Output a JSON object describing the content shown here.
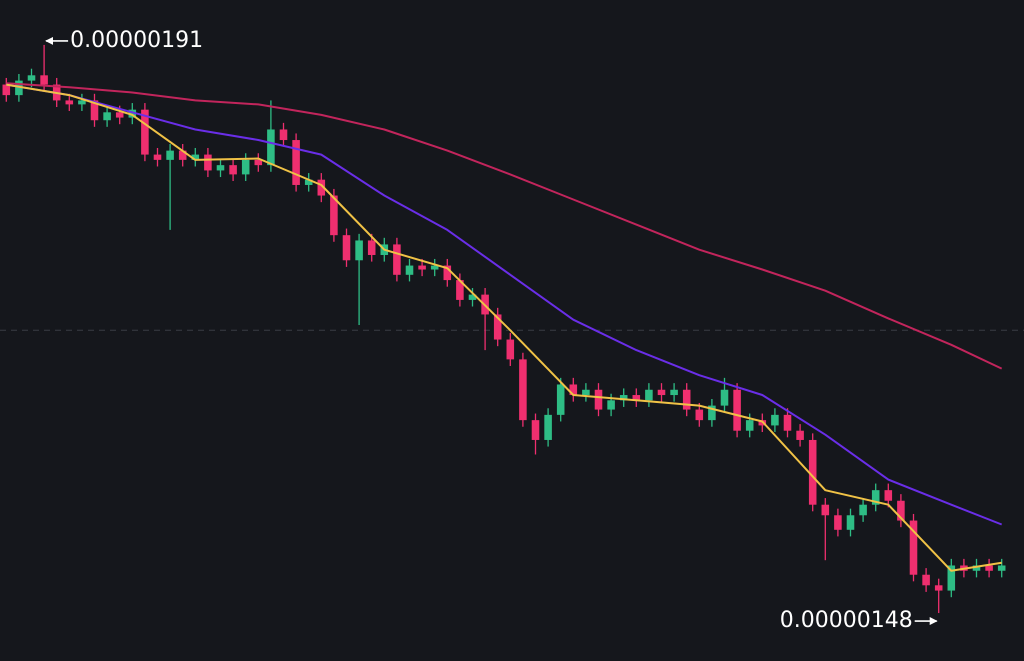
{
  "chart_data": {
    "type": "candlestick",
    "up_color": "#2ebd85",
    "down_color": "#ef2f6f",
    "ylim": [
      1.4437e-06,
      1.944e-06
    ],
    "reference_line": 1.694e-06,
    "open": [
      1.88e-06,
      1.872e-06,
      1.883e-06,
      1.887e-06,
      1.88e-06,
      1.868e-06,
      1.865e-06,
      1.868e-06,
      1.853e-06,
      1.859e-06,
      1.855e-06,
      1.861e-06,
      1.827e-06,
      1.823e-06,
      1.83e-06,
      1.823e-06,
      1.827e-06,
      1.815e-06,
      1.819e-06,
      1.812e-06,
      1.823e-06,
      1.819e-06,
      1.846e-06,
      1.838e-06,
      1.804e-06,
      1.808e-06,
      1.796e-06,
      1.766e-06,
      1.747e-06,
      1.762e-06,
      1.751e-06,
      1.759e-06,
      1.736e-06,
      1.743e-06,
      1.74e-06,
      1.743e-06,
      1.732e-06,
      1.717e-06,
      1.721e-06,
      1.706e-06,
      1.687e-06,
      1.672e-06,
      1.626e-06,
      1.611e-06,
      1.63e-06,
      1.653e-06,
      1.645e-06,
      1.649e-06,
      1.634e-06,
      1.641e-06,
      1.645e-06,
      1.641e-06,
      1.649e-06,
      1.645e-06,
      1.649e-06,
      1.634e-06,
      1.626e-06,
      1.637e-06,
      1.649e-06,
      1.618e-06,
      1.626e-06,
      1.622e-06,
      1.63e-06,
      1.618e-06,
      1.611e-06,
      1.562e-06,
      1.554e-06,
      1.543e-06,
      1.554e-06,
      1.562e-06,
      1.573e-06,
      1.565e-06,
      1.55e-06,
      1.509e-06,
      1.501e-06,
      1.497e-06,
      1.516e-06,
      1.512e-06,
      1.516e-06,
      1.512e-06
    ],
    "high": [
      1.885e-06,
      1.888e-06,
      1.892e-06,
      1.91e-06,
      1.885e-06,
      1.873e-06,
      1.873e-06,
      1.873e-06,
      1.864e-06,
      1.864e-06,
      1.866e-06,
      1.866e-06,
      1.832e-06,
      1.835e-06,
      1.835e-06,
      1.832e-06,
      1.832e-06,
      1.824e-06,
      1.824e-06,
      1.828e-06,
      1.828e-06,
      1.868e-06,
      1.851e-06,
      1.843e-06,
      1.813e-06,
      1.813e-06,
      1.801e-06,
      1.771e-06,
      1.767e-06,
      1.767e-06,
      1.764e-06,
      1.764e-06,
      1.748e-06,
      1.748e-06,
      1.748e-06,
      1.748e-06,
      1.737e-06,
      1.726e-06,
      1.726e-06,
      1.711e-06,
      1.692e-06,
      1.677e-06,
      1.631e-06,
      1.635e-06,
      1.658e-06,
      1.658e-06,
      1.654e-06,
      1.654e-06,
      1.646e-06,
      1.65e-06,
      1.65e-06,
      1.654e-06,
      1.654e-06,
      1.654e-06,
      1.654e-06,
      1.639e-06,
      1.642e-06,
      1.658e-06,
      1.654e-06,
      1.631e-06,
      1.631e-06,
      1.635e-06,
      1.635e-06,
      1.623e-06,
      1.616e-06,
      1.567e-06,
      1.559e-06,
      1.559e-06,
      1.567e-06,
      1.578e-06,
      1.578e-06,
      1.57e-06,
      1.555e-06,
      1.514e-06,
      1.506e-06,
      1.521e-06,
      1.521e-06,
      1.521e-06,
      1.521e-06,
      1.521e-06
    ],
    "low": [
      1.867e-06,
      1.867e-06,
      1.878e-06,
      1.875e-06,
      1.863e-06,
      1.86e-06,
      1.86e-06,
      1.848e-06,
      1.848e-06,
      1.85e-06,
      1.85e-06,
      1.822e-06,
      1.818e-06,
      1.77e-06,
      1.818e-06,
      1.818e-06,
      1.81e-06,
      1.81e-06,
      1.807e-06,
      1.807e-06,
      1.814e-06,
      1.814e-06,
      1.833e-06,
      1.799e-06,
      1.799e-06,
      1.791e-06,
      1.761e-06,
      1.742e-06,
      1.698e-06,
      1.746e-06,
      1.746e-06,
      1.731e-06,
      1.731e-06,
      1.735e-06,
      1.735e-06,
      1.727e-06,
      1.712e-06,
      1.712e-06,
      1.679e-06,
      1.682e-06,
      1.667e-06,
      1.621e-06,
      1.6e-06,
      1.606e-06,
      1.625e-06,
      1.64e-06,
      1.64e-06,
      1.629e-06,
      1.629e-06,
      1.636e-06,
      1.636e-06,
      1.636e-06,
      1.64e-06,
      1.64e-06,
      1.629e-06,
      1.621e-06,
      1.621e-06,
      1.632e-06,
      1.613e-06,
      1.613e-06,
      1.617e-06,
      1.617e-06,
      1.613e-06,
      1.606e-06,
      1.557e-06,
      1.52e-06,
      1.538e-06,
      1.538e-06,
      1.549e-06,
      1.557e-06,
      1.56e-06,
      1.545e-06,
      1.504e-06,
      1.496e-06,
      1.48e-06,
      1.492e-06,
      1.507e-06,
      1.507e-06,
      1.507e-06,
      1.507e-06
    ],
    "close": [
      1.872e-06,
      1.883e-06,
      1.887e-06,
      1.88e-06,
      1.868e-06,
      1.865e-06,
      1.868e-06,
      1.853e-06,
      1.859e-06,
      1.855e-06,
      1.861e-06,
      1.827e-06,
      1.823e-06,
      1.83e-06,
      1.823e-06,
      1.827e-06,
      1.815e-06,
      1.819e-06,
      1.812e-06,
      1.823e-06,
      1.819e-06,
      1.846e-06,
      1.838e-06,
      1.804e-06,
      1.808e-06,
      1.796e-06,
      1.766e-06,
      1.747e-06,
      1.762e-06,
      1.751e-06,
      1.759e-06,
      1.736e-06,
      1.743e-06,
      1.74e-06,
      1.743e-06,
      1.732e-06,
      1.717e-06,
      1.721e-06,
      1.706e-06,
      1.687e-06,
      1.672e-06,
      1.626e-06,
      1.611e-06,
      1.63e-06,
      1.653e-06,
      1.645e-06,
      1.649e-06,
      1.634e-06,
      1.641e-06,
      1.645e-06,
      1.641e-06,
      1.649e-06,
      1.645e-06,
      1.649e-06,
      1.634e-06,
      1.626e-06,
      1.637e-06,
      1.649e-06,
      1.618e-06,
      1.626e-06,
      1.622e-06,
      1.63e-06,
      1.618e-06,
      1.611e-06,
      1.562e-06,
      1.554e-06,
      1.543e-06,
      1.554e-06,
      1.562e-06,
      1.573e-06,
      1.565e-06,
      1.55e-06,
      1.509e-06,
      1.501e-06,
      1.497e-06,
      1.516e-06,
      1.512e-06,
      1.516e-06,
      1.512e-06,
      1.516e-06
    ],
    "series": [
      {
        "color": "#c2255c",
        "x": [
          0,
          5,
          10,
          15,
          20,
          25,
          30,
          35,
          40,
          45,
          50,
          55,
          60,
          65,
          70,
          75,
          79
        ],
        "values": [
          1.881e-06,
          1.878e-06,
          1.874e-06,
          1.868e-06,
          1.865e-06,
          1.857e-06,
          1.846e-06,
          1.83e-06,
          1.812e-06,
          1.793e-06,
          1.774e-06,
          1.755e-06,
          1.74e-06,
          1.724e-06,
          1.703e-06,
          1.683e-06,
          1.665e-06
        ]
      },
      {
        "color": "#6a2ee8",
        "x": [
          0,
          5,
          10,
          15,
          20,
          25,
          30,
          35,
          40,
          45,
          50,
          55,
          60,
          65,
          70,
          75,
          79
        ],
        "values": [
          1.88e-06,
          1.872e-06,
          1.859e-06,
          1.846e-06,
          1.838e-06,
          1.827e-06,
          1.796e-06,
          1.77e-06,
          1.736e-06,
          1.702e-06,
          1.679e-06,
          1.66e-06,
          1.645e-06,
          1.615e-06,
          1.581e-06,
          1.562e-06,
          1.547e-06
        ]
      },
      {
        "color": "#f0c246",
        "x": [
          0,
          5,
          10,
          15,
          20,
          25,
          30,
          35,
          40,
          45,
          50,
          55,
          60,
          65,
          70,
          75,
          79
        ],
        "values": [
          1.88e-06,
          1.872e-06,
          1.857e-06,
          1.823e-06,
          1.824e-06,
          1.804e-06,
          1.755e-06,
          1.741e-06,
          1.694e-06,
          1.645e-06,
          1.641e-06,
          1.637e-06,
          1.625e-06,
          1.573e-06,
          1.562e-06,
          1.512e-06,
          1.518e-06
        ]
      }
    ],
    "annotations": [
      {
        "label": "0.00000191",
        "value": 1.91e-06
      },
      {
        "label": "0.00000148",
        "value": 1.48e-06
      }
    ]
  }
}
